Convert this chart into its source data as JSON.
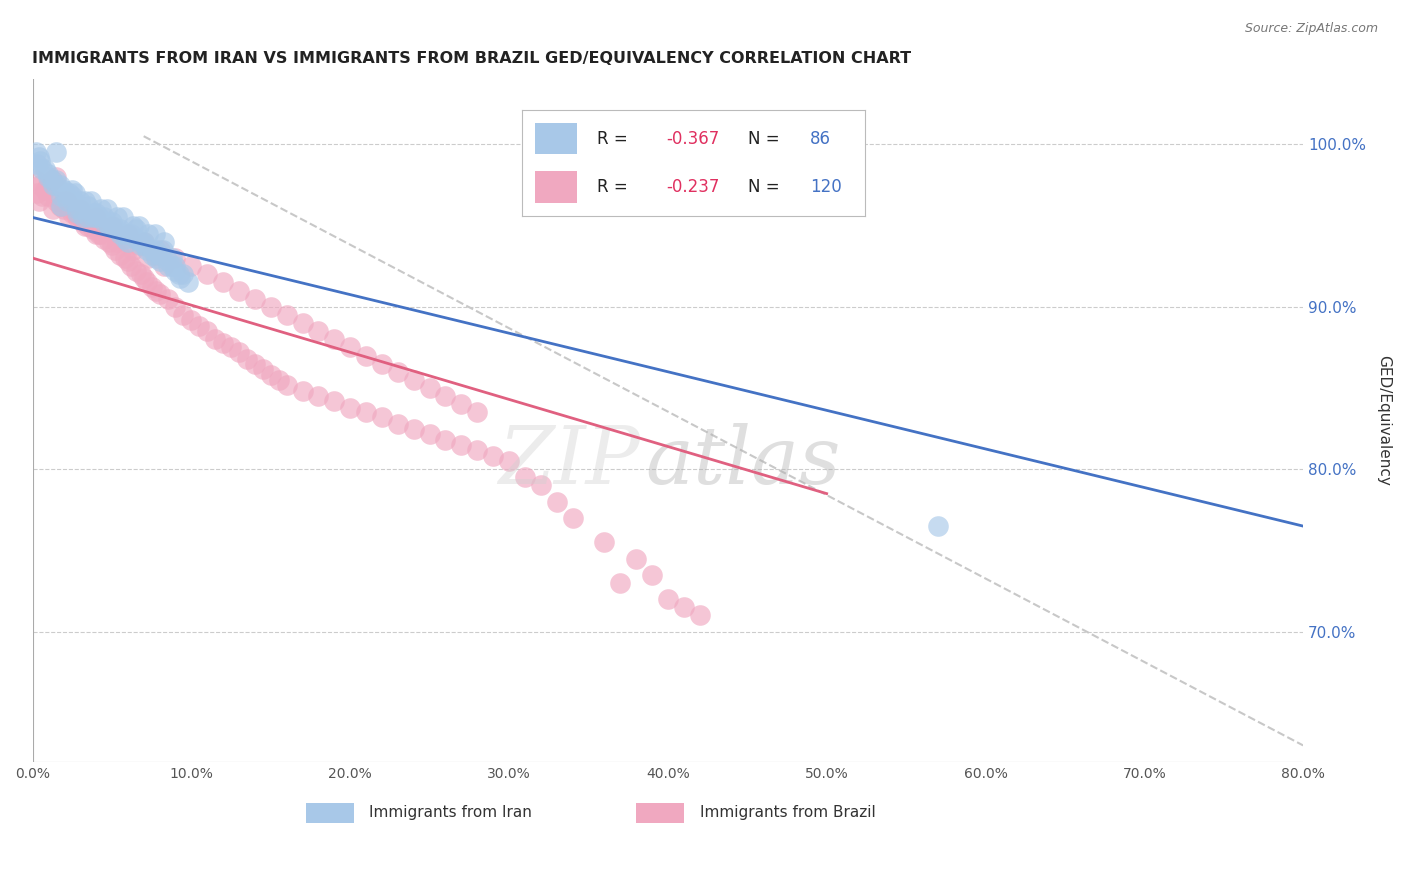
{
  "title": "IMMIGRANTS FROM IRAN VS IMMIGRANTS FROM BRAZIL GED/EQUIVALENCY CORRELATION CHART",
  "source": "Source: ZipAtlas.com",
  "ylabel": "GED/Equivalency",
  "xlim": [
    0.0,
    80.0
  ],
  "ylim": [
    62.0,
    104.0
  ],
  "yticks": [
    70.0,
    80.0,
    90.0,
    100.0
  ],
  "xticks": [
    0.0,
    10.0,
    20.0,
    30.0,
    40.0,
    50.0,
    60.0,
    70.0,
    80.0
  ],
  "iran_R": -0.367,
  "iran_N": 86,
  "brazil_R": -0.237,
  "brazil_N": 120,
  "iran_color": "#a8c8e8",
  "brazil_color": "#f0a8c0",
  "iran_line_color": "#4472c4",
  "brazil_line_color": "#e06080",
  "diagonal_line_color": "#c8c8c8",
  "background_color": "#ffffff",
  "iran_line_x0": 0.0,
  "iran_line_y0": 95.5,
  "iran_line_x1": 80.0,
  "iran_line_y1": 76.5,
  "brazil_line_x0": 0.0,
  "brazil_line_y0": 93.0,
  "brazil_line_x1": 50.0,
  "brazil_line_y1": 78.5,
  "diag_x0": 7.0,
  "diag_y0": 100.5,
  "diag_x1": 80.0,
  "diag_y1": 63.0,
  "iran_scatter_x": [
    0.5,
    0.8,
    1.0,
    1.2,
    1.5,
    1.5,
    1.8,
    2.0,
    2.2,
    2.5,
    2.5,
    2.8,
    3.0,
    3.2,
    3.5,
    3.8,
    4.0,
    4.2,
    4.5,
    4.8,
    5.0,
    5.2,
    5.5,
    5.8,
    6.0,
    6.2,
    6.5,
    6.8,
    7.0,
    7.2,
    7.5,
    7.8,
    8.0,
    8.2,
    8.5,
    8.8,
    9.0,
    9.2,
    9.5,
    9.8,
    1.0,
    1.5,
    2.0,
    2.5,
    3.0,
    3.5,
    4.0,
    4.5,
    5.0,
    5.5,
    6.0,
    6.5,
    7.0,
    7.5,
    8.0,
    8.5,
    9.0,
    0.3,
    0.6,
    1.8,
    2.8,
    3.8,
    4.8,
    5.8,
    6.8,
    7.8,
    8.8,
    1.3,
    2.3,
    3.3,
    4.3,
    5.3,
    6.3,
    7.3,
    8.3,
    9.3,
    0.4,
    1.7,
    2.7,
    3.7,
    4.7,
    5.7,
    6.7,
    7.7,
    57.0,
    0.2
  ],
  "iran_scatter_y": [
    99.0,
    98.5,
    98.2,
    97.8,
    97.5,
    99.5,
    96.8,
    97.0,
    96.5,
    96.5,
    97.2,
    96.0,
    96.0,
    95.5,
    95.5,
    95.8,
    95.5,
    95.5,
    95.2,
    95.0,
    95.0,
    94.8,
    94.5,
    94.2,
    94.0,
    94.5,
    94.8,
    93.8,
    94.0,
    93.5,
    93.2,
    93.0,
    92.8,
    93.5,
    92.5,
    92.5,
    92.2,
    92.0,
    92.0,
    91.5,
    98.0,
    97.8,
    97.2,
    96.8,
    96.5,
    96.2,
    95.8,
    95.5,
    95.2,
    94.8,
    94.5,
    94.2,
    93.8,
    93.5,
    93.2,
    92.8,
    92.5,
    98.8,
    98.5,
    96.2,
    95.8,
    95.5,
    95.0,
    94.5,
    94.0,
    93.5,
    93.0,
    97.5,
    97.0,
    96.5,
    96.0,
    95.5,
    95.0,
    94.5,
    94.0,
    91.8,
    99.2,
    97.5,
    97.0,
    96.5,
    96.0,
    95.5,
    95.0,
    94.5,
    76.5,
    99.5
  ],
  "brazil_scatter_x": [
    0.3,
    0.5,
    0.8,
    1.0,
    1.2,
    1.5,
    1.5,
    1.8,
    2.0,
    2.2,
    2.5,
    2.8,
    3.0,
    3.2,
    3.5,
    3.8,
    4.0,
    4.2,
    4.5,
    4.8,
    5.0,
    5.2,
    5.5,
    5.8,
    6.0,
    6.2,
    6.5,
    6.8,
    7.0,
    7.2,
    7.5,
    7.8,
    8.0,
    8.5,
    9.0,
    9.5,
    10.0,
    10.5,
    11.0,
    11.5,
    12.0,
    12.5,
    13.0,
    13.5,
    14.0,
    14.5,
    15.0,
    15.5,
    16.0,
    17.0,
    18.0,
    19.0,
    20.0,
    21.0,
    22.0,
    23.0,
    24.0,
    25.0,
    26.0,
    27.0,
    28.0,
    29.0,
    30.0,
    0.4,
    0.6,
    1.3,
    2.3,
    3.3,
    4.3,
    5.3,
    6.3,
    7.3,
    8.3,
    1.7,
    2.7,
    3.7,
    4.7,
    5.7,
    6.7,
    7.7,
    0.2,
    1.0,
    2.0,
    3.0,
    4.0,
    5.0,
    6.0,
    7.0,
    8.0,
    9.0,
    10.0,
    11.0,
    12.0,
    13.0,
    14.0,
    15.0,
    16.0,
    17.0,
    18.0,
    19.0,
    20.0,
    21.0,
    22.0,
    23.0,
    24.0,
    36.0,
    37.0,
    38.0,
    39.0,
    40.0,
    41.0,
    42.0,
    25.0,
    26.0,
    27.0,
    28.0,
    31.0,
    32.0,
    33.0,
    34.0
  ],
  "brazil_scatter_y": [
    97.0,
    97.5,
    97.2,
    96.8,
    97.8,
    96.5,
    98.0,
    96.2,
    96.0,
    96.5,
    95.8,
    95.5,
    95.5,
    95.2,
    95.0,
    94.8,
    94.5,
    94.5,
    94.2,
    94.0,
    93.8,
    93.5,
    93.2,
    93.0,
    92.8,
    92.5,
    92.2,
    92.0,
    91.8,
    91.5,
    91.2,
    91.0,
    90.8,
    90.5,
    90.0,
    89.5,
    89.2,
    88.8,
    88.5,
    88.0,
    87.8,
    87.5,
    87.2,
    86.8,
    86.5,
    86.2,
    85.8,
    85.5,
    85.2,
    84.8,
    84.5,
    84.2,
    83.8,
    83.5,
    83.2,
    82.8,
    82.5,
    82.2,
    81.8,
    81.5,
    81.2,
    80.8,
    80.5,
    96.5,
    96.8,
    96.0,
    95.5,
    95.0,
    94.5,
    94.0,
    93.5,
    93.0,
    92.5,
    96.2,
    95.8,
    95.2,
    94.8,
    94.2,
    93.8,
    93.2,
    97.8,
    97.5,
    96.5,
    96.0,
    95.5,
    95.0,
    94.5,
    94.0,
    93.5,
    93.0,
    92.5,
    92.0,
    91.5,
    91.0,
    90.5,
    90.0,
    89.5,
    89.0,
    88.5,
    88.0,
    87.5,
    87.0,
    86.5,
    86.0,
    85.5,
    75.5,
    73.0,
    74.5,
    73.5,
    72.0,
    71.5,
    71.0,
    85.0,
    84.5,
    84.0,
    83.5,
    79.5,
    79.0,
    78.0,
    77.0
  ]
}
